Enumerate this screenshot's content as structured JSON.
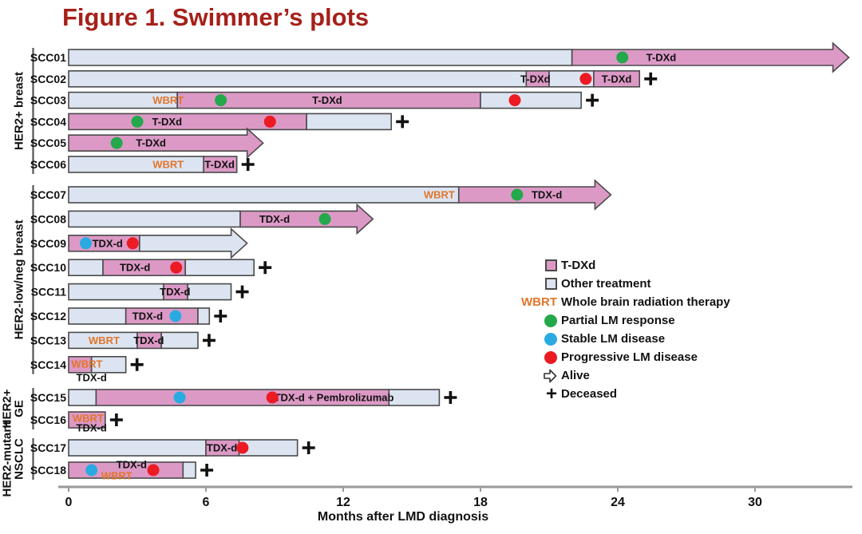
{
  "title": "Figure 1. Swimmer’s plots",
  "colors": {
    "tdxd": "#DC99C6",
    "other": "#DCE4F2",
    "outline": "#4A4A4A",
    "green": "#23A84B",
    "blue": "#29ABE2",
    "red": "#EC1B23",
    "wbrt": "#E1762B",
    "title": "#A62019",
    "axis": "#999999",
    "bracket": "#555555"
  },
  "legend": {
    "items": [
      {
        "icon": "swatch-tdxd",
        "label": "T-DXd"
      },
      {
        "icon": "swatch-other",
        "label": "Other treatment"
      },
      {
        "icon": "wbrt-text",
        "text": "WBRT",
        "label": "Whole brain radiation therapy"
      },
      {
        "icon": "dot-partial",
        "label": "Partial LM response"
      },
      {
        "icon": "dot-stable",
        "label": "Stable LM disease"
      },
      {
        "icon": "dot-progressive",
        "label": "Progressive LM disease"
      },
      {
        "icon": "arrow-alive",
        "label": "Alive"
      },
      {
        "icon": "plus-deceased",
        "label": "Deceased"
      }
    ]
  },
  "chart_data": {
    "type": "bar",
    "subtype": "swimmer_plot",
    "xlabel": "Months after LMD diagnosis",
    "xlim": [
      0,
      34.5
    ],
    "xticks": [
      0,
      6,
      12,
      18,
      24,
      30
    ],
    "groups": [
      {
        "label": "HER2+ breast",
        "rows": [
          {
            "id": "SCC01",
            "segments": [
              {
                "type": "other",
                "start": 0,
                "end": 22.0
              },
              {
                "type": "tdxd",
                "start": 22.0,
                "end": 34.1,
                "arrow": true
              }
            ],
            "labels": [
              {
                "text": "T-DXd",
                "at": 25.9
              }
            ],
            "markers": [
              {
                "type": "partial",
                "at": 24.2
              }
            ],
            "end_status": "alive"
          },
          {
            "id": "SCC02",
            "segments": [
              {
                "type": "other",
                "start": 0,
                "end": 20.0
              },
              {
                "type": "tdxd",
                "start": 20.0,
                "end": 21.0
              },
              {
                "type": "other",
                "start": 21.0,
                "end": 22.95
              },
              {
                "type": "tdxd",
                "start": 22.95,
                "end": 24.95
              }
            ],
            "labels": [
              {
                "text": "T-DXd",
                "at": 20.4
              },
              {
                "text": "T-DXd",
                "at": 23.95
              }
            ],
            "markers": [
              {
                "type": "progressive",
                "at": 22.6
              }
            ],
            "end_status": "deceased"
          },
          {
            "id": "SCC03",
            "segments": [
              {
                "type": "other",
                "start": 0,
                "end": 4.75
              },
              {
                "type": "tdxd",
                "start": 4.75,
                "end": 18.0
              },
              {
                "type": "other",
                "start": 18.0,
                "end": 22.4
              }
            ],
            "labels": [
              {
                "text": "WBRT",
                "at": 4.35,
                "color": "wbrt"
              },
              {
                "text": "T-DXd",
                "at": 11.3
              }
            ],
            "markers": [
              {
                "type": "partial",
                "at": 6.65
              },
              {
                "type": "progressive",
                "at": 19.5
              }
            ],
            "end_status": "deceased"
          },
          {
            "id": "SCC04",
            "segments": [
              {
                "type": "tdxd",
                "start": 0,
                "end": 10.4
              },
              {
                "type": "other",
                "start": 10.4,
                "end": 14.1
              }
            ],
            "labels": [
              {
                "text": "T-DXd",
                "at": 4.3
              }
            ],
            "markers": [
              {
                "type": "partial",
                "at": 3.0
              },
              {
                "type": "progressive",
                "at": 8.8
              }
            ],
            "end_status": "deceased"
          },
          {
            "id": "SCC05",
            "segments": [
              {
                "type": "tdxd",
                "start": 0,
                "end": 8.5,
                "arrow": true
              }
            ],
            "labels": [
              {
                "text": "T-DXd",
                "at": 3.6
              }
            ],
            "markers": [
              {
                "type": "partial",
                "at": 2.1
              }
            ],
            "end_status": "alive"
          },
          {
            "id": "SCC06",
            "segments": [
              {
                "type": "other",
                "start": 0,
                "end": 5.9
              },
              {
                "type": "tdxd",
                "start": 5.9,
                "end": 7.35
              }
            ],
            "labels": [
              {
                "text": "WBRT",
                "at": 4.35,
                "color": "wbrt"
              },
              {
                "text": "T-DXd",
                "at": 6.6
              }
            ],
            "markers": [],
            "end_status": "deceased"
          }
        ]
      },
      {
        "label": "HER2-low/neg breast",
        "rows": [
          {
            "id": "SCC07",
            "segments": [
              {
                "type": "other",
                "start": 0,
                "end": 17.05
              },
              {
                "type": "tdxd",
                "start": 17.05,
                "end": 23.7,
                "arrow": true
              }
            ],
            "labels": [
              {
                "text": "WBRT",
                "at": 16.2,
                "color": "wbrt"
              },
              {
                "text": "TDX-d",
                "at": 20.9
              }
            ],
            "markers": [
              {
                "type": "partial",
                "at": 19.6
              }
            ],
            "end_status": "alive"
          },
          {
            "id": "SCC08",
            "segments": [
              {
                "type": "other",
                "start": 0,
                "end": 7.5
              },
              {
                "type": "tdxd",
                "start": 7.5,
                "end": 13.3,
                "arrow": true
              }
            ],
            "labels": [
              {
                "text": "TDX-d",
                "at": 9.0
              }
            ],
            "markers": [
              {
                "type": "partial",
                "at": 11.2
              }
            ],
            "end_status": "alive"
          },
          {
            "id": "SCC09",
            "segments": [
              {
                "type": "tdxd",
                "start": 0,
                "end": 3.1
              },
              {
                "type": "other",
                "start": 3.1,
                "end": 7.8,
                "arrow": true
              }
            ],
            "labels": [
              {
                "text": "TDX-d",
                "at": 1.7
              }
            ],
            "markers": [
              {
                "type": "stable",
                "at": 0.75
              },
              {
                "type": "progressive",
                "at": 2.8
              }
            ],
            "end_status": "alive"
          },
          {
            "id": "SCC10",
            "segments": [
              {
                "type": "other",
                "start": 0,
                "end": 1.5
              },
              {
                "type": "tdxd",
                "start": 1.5,
                "end": 5.1
              },
              {
                "type": "other",
                "start": 5.1,
                "end": 8.1
              }
            ],
            "labels": [
              {
                "text": "TDX-d",
                "at": 2.9
              }
            ],
            "markers": [
              {
                "type": "progressive",
                "at": 4.7
              }
            ],
            "end_status": "deceased"
          },
          {
            "id": "SCC11",
            "segments": [
              {
                "type": "other",
                "start": 0,
                "end": 4.15
              },
              {
                "type": "tdxd",
                "start": 4.15,
                "end": 5.2
              },
              {
                "type": "other",
                "start": 5.2,
                "end": 7.1
              }
            ],
            "labels": [
              {
                "text": "TDX-d",
                "at": 4.65
              }
            ],
            "markers": [],
            "end_status": "deceased"
          },
          {
            "id": "SCC12",
            "segments": [
              {
                "type": "other",
                "start": 0,
                "end": 2.5
              },
              {
                "type": "tdxd",
                "start": 2.5,
                "end": 5.65
              },
              {
                "type": "other",
                "start": 5.65,
                "end": 6.15
              }
            ],
            "labels": [
              {
                "text": "TDX-d",
                "at": 3.45
              }
            ],
            "markers": [
              {
                "type": "stable",
                "at": 4.67
              }
            ],
            "end_status": "deceased"
          },
          {
            "id": "SCC13",
            "segments": [
              {
                "type": "other",
                "start": 0,
                "end": 3.0
              },
              {
                "type": "tdxd",
                "start": 3.0,
                "end": 4.05
              },
              {
                "type": "other",
                "start": 4.05,
                "end": 5.65
              }
            ],
            "labels": [
              {
                "text": "WBRT",
                "at": 1.55,
                "color": "wbrt"
              },
              {
                "text": "TDX-d",
                "at": 3.5
              }
            ],
            "markers": [],
            "end_status": "deceased"
          },
          {
            "id": "SCC14",
            "segments": [
              {
                "type": "tdxd",
                "start": 0,
                "end": 1.0
              },
              {
                "type": "other",
                "start": 1.0,
                "end": 2.5
              }
            ],
            "labels": [
              {
                "text": "WBRT",
                "at": 0.8,
                "color": "wbrt",
                "dy": -1
              },
              {
                "text": "TDX-d",
                "at": 1.0,
                "dy": 16
              }
            ],
            "markers": [],
            "end_status": "deceased"
          }
        ]
      },
      {
        "label": "HER2+\nGE",
        "rows": [
          {
            "id": "SCC15",
            "segments": [
              {
                "type": "other",
                "start": 0,
                "end": 1.2
              },
              {
                "type": "tdxd",
                "start": 1.2,
                "end": 14.0
              },
              {
                "type": "other",
                "start": 14.0,
                "end": 16.2
              }
            ],
            "labels": [
              {
                "text": "TDX-d + Pembrolizumab",
                "at": 11.6
              }
            ],
            "markers": [
              {
                "type": "stable",
                "at": 4.85
              },
              {
                "type": "progressive",
                "at": 8.9
              }
            ],
            "end_status": "deceased"
          },
          {
            "id": "SCC16",
            "segments": [
              {
                "type": "tdxd",
                "start": 0,
                "end": 1.6
              }
            ],
            "labels": [
              {
                "text": "WBRT",
                "at": 0.85,
                "color": "wbrt",
                "dy": -2
              },
              {
                "text": "TDX-d",
                "at": 1.0,
                "dy": 10
              }
            ],
            "markers": [],
            "end_status": "deceased"
          }
        ]
      },
      {
        "label": "HER2-mutant\nNSCLC",
        "rows": [
          {
            "id": "SCC17",
            "segments": [
              {
                "type": "other",
                "start": 0,
                "end": 6.0
              },
              {
                "type": "tdxd",
                "start": 6.0,
                "end": 7.45
              },
              {
                "type": "other",
                "start": 7.45,
                "end": 10.0
              }
            ],
            "labels": [
              {
                "text": "TDX-d",
                "at": 6.7
              }
            ],
            "markers": [
              {
                "type": "progressive",
                "at": 7.6
              }
            ],
            "end_status": "deceased"
          },
          {
            "id": "SCC18",
            "segments": [
              {
                "type": "tdxd",
                "start": 0,
                "end": 5.0
              },
              {
                "type": "other",
                "start": 5.0,
                "end": 5.55
              }
            ],
            "labels": [
              {
                "text": "TDX-d",
                "at": 2.75,
                "dy": -7
              },
              {
                "text": "WBRT",
                "at": 2.1,
                "color": "wbrt",
                "dy": 7
              }
            ],
            "markers": [
              {
                "type": "stable",
                "at": 1.0
              },
              {
                "type": "progressive",
                "at": 3.7
              }
            ],
            "end_status": "deceased"
          }
        ]
      }
    ]
  }
}
